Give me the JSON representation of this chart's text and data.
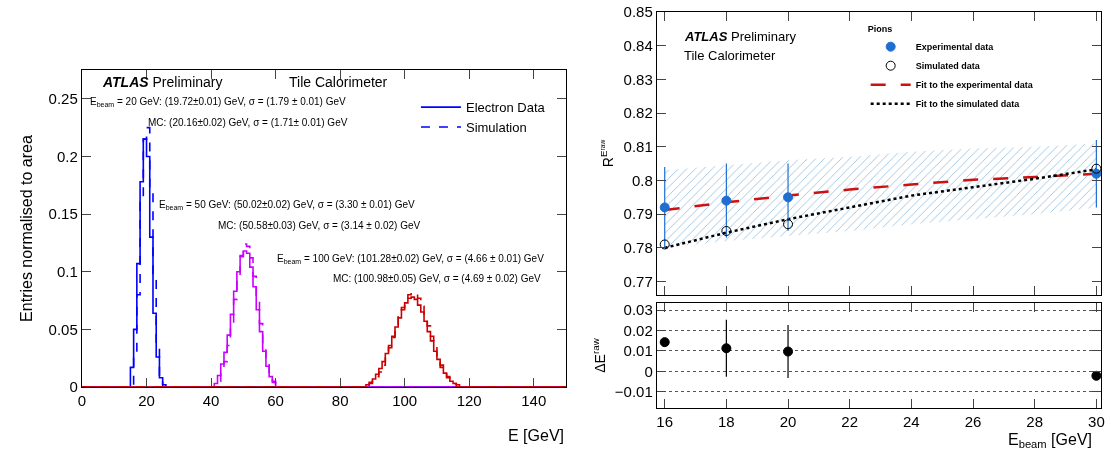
{
  "chart_data": [
    {
      "type": "step",
      "xlabel": "E [GeV]",
      "ylabel": "Entries normalised to area",
      "xlim": [
        0,
        150
      ],
      "xticks": [
        0,
        20,
        40,
        60,
        80,
        100,
        120,
        140
      ],
      "ylim": [
        0,
        0.275
      ],
      "yticks": [
        0,
        0.05,
        0.1,
        0.15,
        0.2,
        0.25
      ],
      "legend": "top right",
      "annotations": [
        "ATLAS Preliminary",
        "Tile Calorimeter",
        "E$_{beam}$ = 20 GeV: (19.72±0.01) GeV, σ = (1.79 ± 0.01) GeV",
        "MC: (20.16±0.02) GeV, σ = (1.71± 0.01) GeV",
        "E$_{beam}$ = 50 GeV: (50.02±0.02) GeV, σ = (3.30 ± 0.01) GeV",
        "MC: (50.58±0.03) GeV, σ = (3.14 ± 0.02) GeV",
        "E$_{beam}$ = 100 GeV: (101.28±0.02) GeV, σ = (4.66 ± 0.01) GeV",
        "MC: (100.98±0.05) GeV, σ = (4.69 ± 0.02) GeV"
      ],
      "series": [
        {
          "name": "Electron Data",
          "color": "#0000ff",
          "line_style": "solid",
          "x": [
            0,
            15,
            16,
            17,
            18,
            19,
            20,
            21,
            22,
            23,
            24,
            25,
            26,
            150
          ],
          "values": [
            0,
            0.017,
            0.05,
            0.107,
            0.178,
            0.215,
            0.2,
            0.13,
            0.064,
            0.026,
            0.008,
            0.002,
            0,
            0
          ]
        },
        {
          "name": "Simulation",
          "color": "#0000ff",
          "line_style": "dashed",
          "x": [
            0,
            16,
            17,
            18,
            19,
            20,
            21,
            22,
            23,
            24,
            25,
            150
          ],
          "values": [
            0,
            0.025,
            0.08,
            0.16,
            0.215,
            0.225,
            0.17,
            0.095,
            0.035,
            0.008,
            0,
            0
          ]
        },
        {
          "color": "#cc00ff",
          "line_style": "solid",
          "x": [
            0,
            41,
            42,
            43,
            44,
            45,
            46,
            47,
            48,
            49,
            50,
            51,
            52,
            53,
            54,
            55,
            56,
            57,
            58,
            59,
            60,
            150
          ],
          "values": [
            0,
            0.003,
            0.01,
            0.02,
            0.03,
            0.045,
            0.063,
            0.083,
            0.1,
            0.113,
            0.118,
            0.116,
            0.104,
            0.087,
            0.067,
            0.048,
            0.031,
            0.018,
            0.009,
            0.004,
            0,
            0
          ]
        },
        {
          "color": "#cc00ff",
          "line_style": "dashed",
          "x": [
            0,
            42,
            43,
            44,
            45,
            46,
            47,
            48,
            49,
            50,
            51,
            52,
            53,
            54,
            55,
            56,
            57,
            58,
            59,
            60,
            150
          ],
          "values": [
            0,
            0.005,
            0.012,
            0.022,
            0.036,
            0.055,
            0.076,
            0.097,
            0.114,
            0.124,
            0.122,
            0.112,
            0.096,
            0.076,
            0.055,
            0.036,
            0.021,
            0.011,
            0.005,
            0,
            0
          ]
        },
        {
          "color": "#cc0000",
          "line_style": "solid",
          "x": [
            0,
            88,
            89,
            90,
            91,
            92,
            93,
            94,
            95,
            96,
            97,
            98,
            99,
            100,
            101,
            102,
            103,
            104,
            105,
            106,
            107,
            108,
            109,
            110,
            111,
            112,
            113,
            114,
            115,
            116,
            150
          ],
          "values": [
            0,
            0.002,
            0.004,
            0.007,
            0.011,
            0.016,
            0.022,
            0.029,
            0.036,
            0.044,
            0.052,
            0.06,
            0.067,
            0.073,
            0.077,
            0.078,
            0.076,
            0.071,
            0.065,
            0.057,
            0.048,
            0.04,
            0.031,
            0.024,
            0.017,
            0.012,
            0.008,
            0.005,
            0.003,
            0,
            0
          ]
        },
        {
          "color": "#cc0000",
          "line_style": "dashed",
          "x": [
            0,
            89,
            90,
            91,
            92,
            93,
            94,
            95,
            96,
            97,
            98,
            99,
            100,
            101,
            102,
            103,
            104,
            105,
            106,
            107,
            108,
            109,
            110,
            111,
            112,
            113,
            114,
            115,
            116,
            117,
            150
          ],
          "values": [
            0,
            0.003,
            0.005,
            0.009,
            0.013,
            0.019,
            0.026,
            0.034,
            0.043,
            0.052,
            0.061,
            0.069,
            0.075,
            0.08,
            0.082,
            0.081,
            0.077,
            0.07,
            0.062,
            0.053,
            0.044,
            0.035,
            0.027,
            0.019,
            0.013,
            0.009,
            0.006,
            0.003,
            0.002,
            0,
            0
          ]
        }
      ]
    },
    {
      "type": "scatter",
      "ylabel": "R$^{Eʳᵃʷ}$",
      "xlim": [
        15.75,
        30.15
      ],
      "xticks": [
        16,
        18,
        20,
        22,
        24,
        26,
        28,
        30
      ],
      "ylim": [
        0.766,
        0.85
      ],
      "yticks": [
        0.77,
        0.78,
        0.79,
        0.8,
        0.81,
        0.82,
        0.83,
        0.84,
        0.85
      ],
      "tick_labels": "y",
      "legend": "top right",
      "legend_title": "Pions",
      "annotations": [
        "ATLAS Preliminary",
        "Tile Calorimeter"
      ],
      "series": [
        {
          "name": "Experimental data",
          "marker": "circle",
          "color": "#1f6fd1",
          "x": [
            16,
            18,
            20,
            30
          ],
          "values": [
            0.792,
            0.794,
            0.795,
            0.802
          ],
          "errors": [
            0.012,
            0.011,
            0.01,
            0.01
          ]
        },
        {
          "name": "Simulated data",
          "marker": "circle-open",
          "color": "#000000",
          "x": [
            16,
            18,
            20,
            30
          ],
          "values": [
            0.781,
            0.785,
            0.787,
            0.8035
          ]
        },
        {
          "name": "Fit to the experimental data",
          "type": "line",
          "line_style": "dashed",
          "color": "#cc1111",
          "x": [
            16,
            18,
            20,
            22,
            24,
            26,
            28,
            30
          ],
          "values": [
            0.7912,
            0.7935,
            0.7955,
            0.7973,
            0.7988,
            0.8002,
            0.801,
            0.802
          ],
          "lower": [
            0.78,
            0.782,
            0.7835,
            0.785,
            0.787,
            0.7885,
            0.79,
            0.792
          ],
          "upper": [
            0.803,
            0.8045,
            0.806,
            0.807,
            0.8085,
            0.8095,
            0.81,
            0.811
          ]
        },
        {
          "name": "Fit to the simulated data",
          "type": "line",
          "line_style": "dotted",
          "color": "#000000",
          "x": [
            16,
            18,
            20,
            22,
            24,
            26,
            28,
            30
          ],
          "values": [
            0.78,
            0.7845,
            0.7885,
            0.792,
            0.7955,
            0.798,
            0.8005,
            0.8033
          ]
        }
      ]
    },
    {
      "type": "scatter",
      "xlabel": "E$_{beam}$ [GeV]",
      "ylabel": "ΔE$^{raw}$",
      "xlim": [
        15.75,
        30.15
      ],
      "xticks": [
        16,
        18,
        20,
        22,
        24,
        26,
        28,
        30
      ],
      "ylim": [
        -0.018,
        0.0335
      ],
      "yticks": [
        {
          "value": -0.01,
          "label": "−0.01"
        },
        0,
        0.01,
        0.02,
        0.03
      ],
      "grid": "y",
      "marker": "circle",
      "series": [
        {
          "color": "#000000",
          "x": [
            16,
            18,
            20,
            30
          ],
          "values": [
            0.0143,
            0.0113,
            0.0097,
            -0.0022
          ],
          "errors": [
            null,
            0.014,
            0.013,
            null
          ]
        }
      ]
    }
  ]
}
